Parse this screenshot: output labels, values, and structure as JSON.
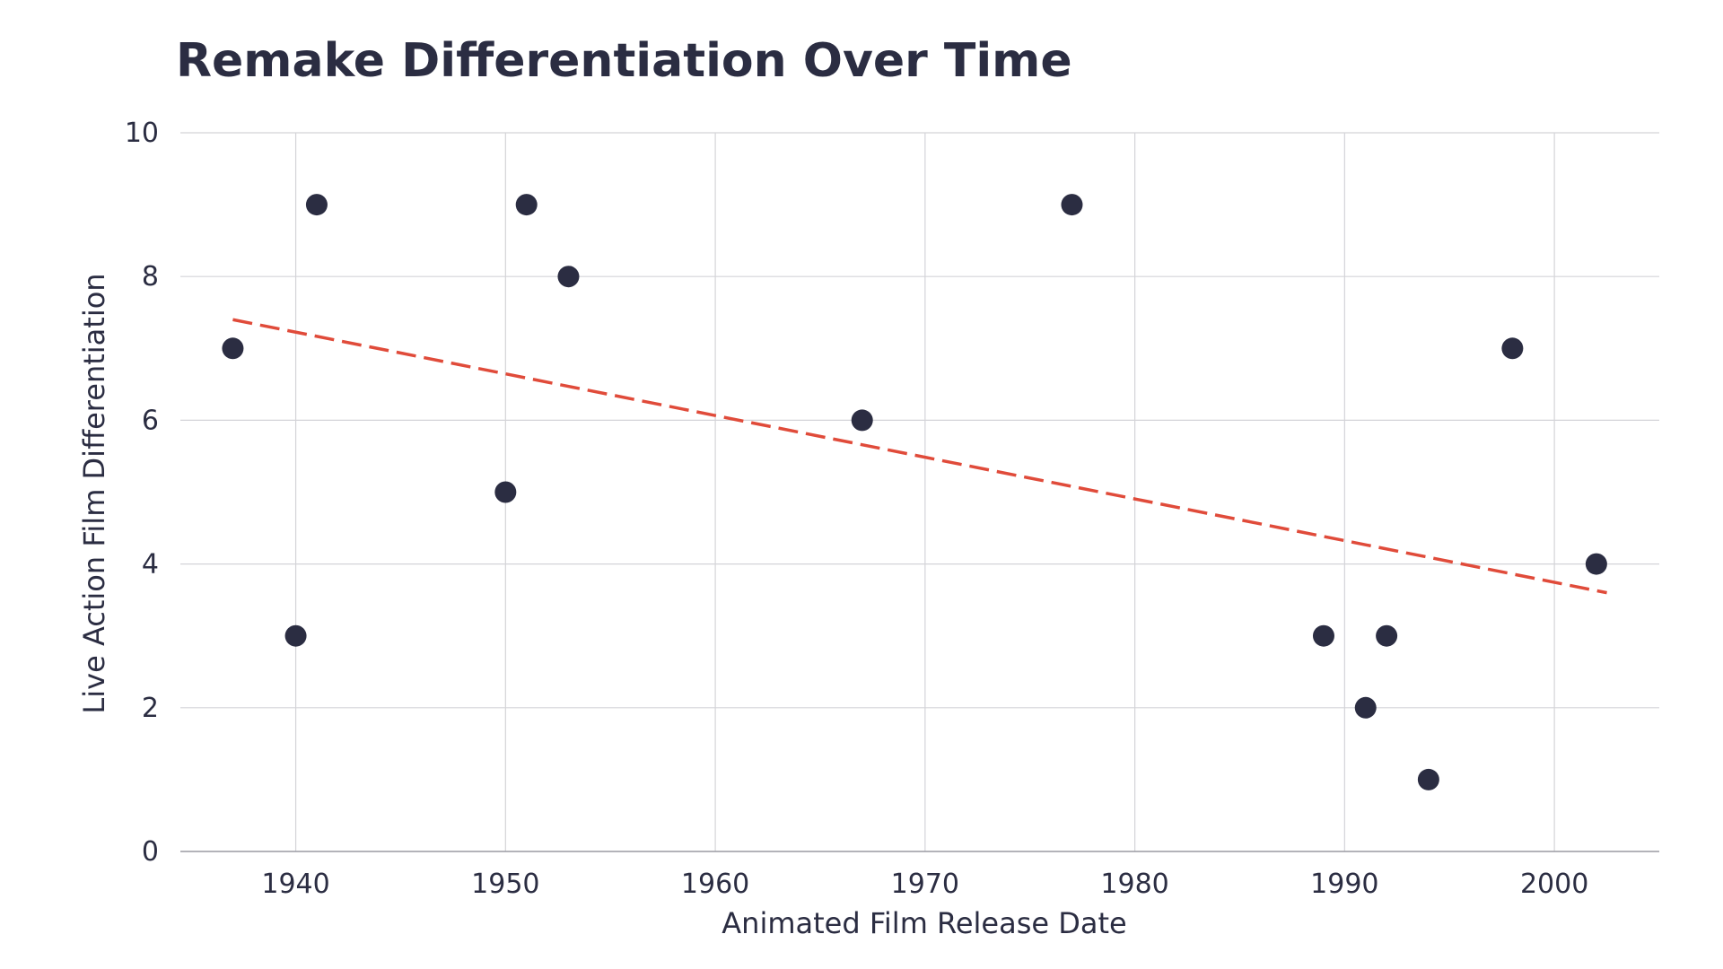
{
  "chart_data": {
    "type": "scatter",
    "title": "Remake Differentiation Over Time",
    "xlabel": "Animated Film Release Date",
    "ylabel": "Live Action Film Differentiation",
    "xlim": [
      1934.5,
      2005
    ],
    "ylim": [
      0,
      10
    ],
    "x_ticks": [
      1940,
      1950,
      1960,
      1970,
      1980,
      1990,
      2000
    ],
    "y_ticks": [
      0,
      2,
      4,
      6,
      8,
      10
    ],
    "grid": true,
    "legend": "none",
    "series": [
      {
        "points": [
          {
            "x": 1937,
            "y": 7
          },
          {
            "x": 1940,
            "y": 3
          },
          {
            "x": 1941,
            "y": 9
          },
          {
            "x": 1950,
            "y": 5
          },
          {
            "x": 1951,
            "y": 9
          },
          {
            "x": 1953,
            "y": 8
          },
          {
            "x": 1967,
            "y": 6
          },
          {
            "x": 1977,
            "y": 9
          },
          {
            "x": 1989,
            "y": 3
          },
          {
            "x": 1991,
            "y": 2
          },
          {
            "x": 1992,
            "y": 3
          },
          {
            "x": 1994,
            "y": 1
          },
          {
            "x": 1998,
            "y": 7
          },
          {
            "x": 2002,
            "y": 4
          }
        ]
      }
    ],
    "trendline": {
      "style": "dashed",
      "x": [
        1937,
        2002.5
      ],
      "y": [
        7.4,
        3.6
      ]
    },
    "colors": {
      "points": "#2b2d42",
      "trendline": "#e04b3a",
      "grid": "#d4d4d8",
      "text": "#2b2d42"
    }
  }
}
